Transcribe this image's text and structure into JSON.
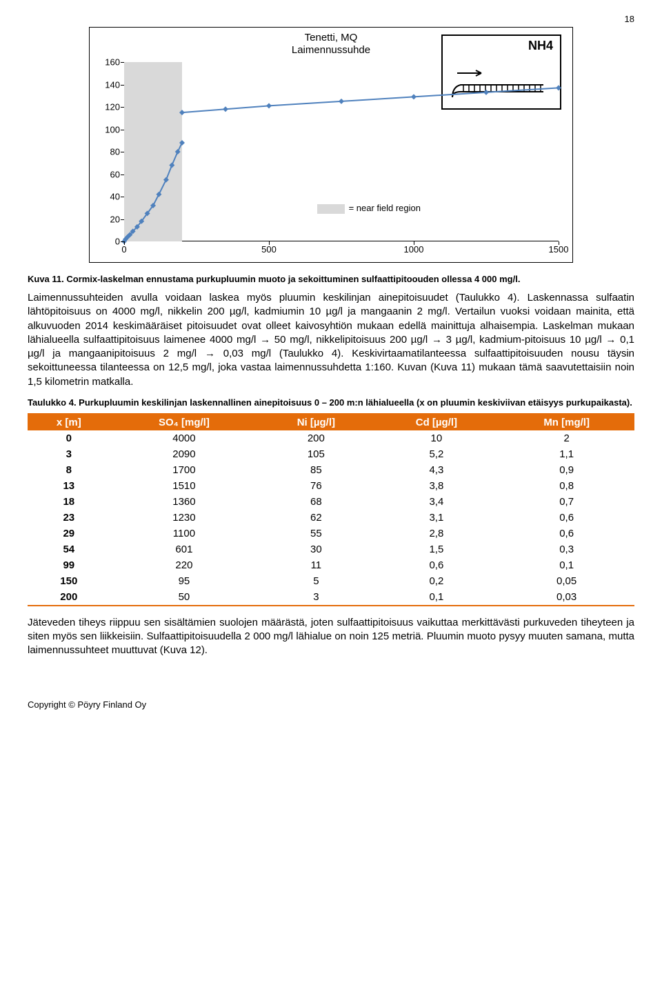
{
  "page_number": "18",
  "chart": {
    "title_line1": "Tenetti, MQ",
    "title_line2": "Laimennussuhde",
    "nh4_label": "NH4",
    "legend_text": "= near field region",
    "xlim": [
      0,
      1500
    ],
    "ylim": [
      0,
      160
    ],
    "xticks": [
      0,
      500,
      1000,
      1500
    ],
    "yticks": [
      0,
      20,
      40,
      60,
      80,
      100,
      120,
      140,
      160
    ],
    "near_field_end_x": 200,
    "curve": [
      [
        0,
        0
      ],
      [
        5,
        2
      ],
      [
        12,
        4
      ],
      [
        20,
        6
      ],
      [
        30,
        9
      ],
      [
        45,
        13
      ],
      [
        60,
        18
      ],
      [
        80,
        25
      ],
      [
        100,
        32
      ],
      [
        120,
        42
      ],
      [
        145,
        55
      ],
      [
        165,
        68
      ],
      [
        185,
        80
      ],
      [
        200,
        88
      ]
    ],
    "far_line": [
      [
        200,
        115
      ],
      [
        350,
        118
      ],
      [
        500,
        121
      ],
      [
        750,
        125
      ],
      [
        1000,
        129
      ],
      [
        1250,
        133
      ],
      [
        1500,
        137
      ]
    ],
    "line_color": "#4f81bd",
    "near_field_color": "#d9d9d9",
    "background_color": "#ffffff"
  },
  "caption1": "Kuva 11. Cormix-laskelman ennustama purkupluumin muoto ja sekoittuminen sulfaattipitoouden ollessa 4 000 mg/l.",
  "para1": "Laimennussuhteiden avulla voidaan laskea myös pluumin keskilinjan ainepitoisuudet (Taulukko 4). Laskennassa sulfaatin lähtöpitoisuus on 4000 mg/l, nikkelin 200 µg/l, kadmiumin 10 µg/l ja mangaanin 2 mg/l. Vertailun vuoksi voidaan mainita, että alkuvuoden 2014 keskimääräiset pitoisuudet ovat olleet kaivosyhtiön mukaan edellä mainittuja alhaisempia. Laskelman mukaan lähialueella sulfaattipitoisuus laimenee 4000 mg/l → 50 mg/l, nikkelipitoisuus 200 µg/l → 3 µg/l, kadmium-pitoisuus 10 µg/l → 0,1 µg/l ja mangaanipitoisuus 2 mg/l → 0,03 mg/l (Taulukko 4). Keskivirtaamatilanteessa sulfaattipitoisuuden nousu täysin sekoittuneessa tilanteessa on 12,5 mg/l, joka vastaa laimennussuhdetta 1:160. Kuvan (Kuva 11) mukaan tämä saavutettaisiin noin 1,5 kilometrin matkalla.",
  "table_caption": "Taulukko 4. Purkupluumin keskilinjan laskennallinen ainepitoisuus 0 – 200 m:n lähialueella (x on pluumin keskiviivan etäisyys purkupaikasta).",
  "table": {
    "header_bg": "#e46c0a",
    "columns": [
      "x [m]",
      "SO₄ [mg/l]",
      "Ni [µg/l]",
      "Cd [µg/l]",
      "Mn [mg/l]"
    ],
    "rows": [
      [
        "0",
        "4000",
        "200",
        "10",
        "2"
      ],
      [
        "3",
        "2090",
        "105",
        "5,2",
        "1,1"
      ],
      [
        "8",
        "1700",
        "85",
        "4,3",
        "0,9"
      ],
      [
        "13",
        "1510",
        "76",
        "3,8",
        "0,8"
      ],
      [
        "18",
        "1360",
        "68",
        "3,4",
        "0,7"
      ],
      [
        "23",
        "1230",
        "62",
        "3,1",
        "0,6"
      ],
      [
        "29",
        "1100",
        "55",
        "2,8",
        "0,6"
      ],
      [
        "54",
        "601",
        "30",
        "1,5",
        "0,3"
      ],
      [
        "99",
        "220",
        "11",
        "0,6",
        "0,1"
      ],
      [
        "150",
        "95",
        "5",
        "0,2",
        "0,05"
      ],
      [
        "200",
        "50",
        "3",
        "0,1",
        "0,03"
      ]
    ]
  },
  "para2": "Jäteveden tiheys riippuu sen sisältämien suolojen määrästä, joten sulfaattipitoisuus vaikuttaa merkittävästi purkuveden tiheyteen ja siten myös sen liikkeisiin. Sulfaattipitoisuudella 2 000 mg/l lähialue on noin 125 metriä. Pluumin muoto pysyy muuten samana, mutta laimennussuhteet muuttuvat (Kuva 12).",
  "footer": "Copyright © Pöyry Finland Oy"
}
